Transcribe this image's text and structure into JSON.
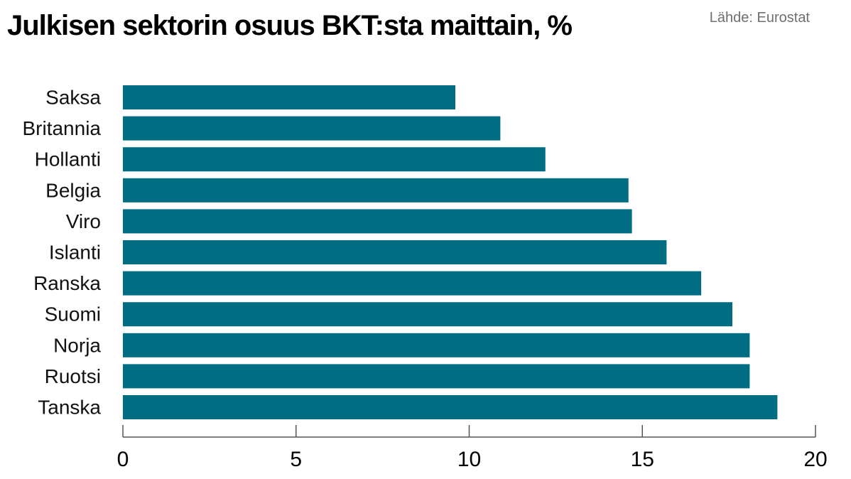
{
  "chart_data": {
    "type": "bar",
    "orientation": "horizontal",
    "title": "Julkisen sektorin osuus BKT:sta maittain, %",
    "source": "Lähde: Eurostat",
    "categories": [
      "Saksa",
      "Britannia",
      "Hollanti",
      "Belgia",
      "Viro",
      "Islanti",
      "Ranska",
      "Suomi",
      "Norja",
      "Ruotsi",
      "Tanska"
    ],
    "values": [
      9.6,
      10.9,
      12.2,
      14.6,
      14.7,
      15.7,
      16.7,
      17.6,
      18.1,
      18.1,
      18.9
    ],
    "xlim": [
      0,
      20
    ],
    "xticks": [
      0,
      5,
      10,
      15,
      20
    ],
    "grid": false,
    "bar_color": "#006d82"
  }
}
